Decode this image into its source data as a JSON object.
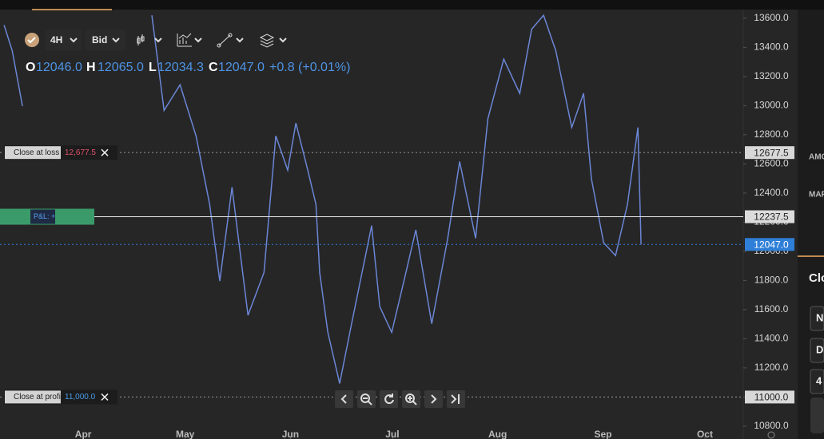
{
  "toolbar": {
    "interval": "4H",
    "price_side": "Bid"
  },
  "ohlc": {
    "o_label": "O",
    "o": "12046.0",
    "h_label": "H",
    "h": "12065.0",
    "l_label": "L",
    "l": "12034.3",
    "c_label": "C",
    "c": "12047.0",
    "change": "+0.8 (+0.01%)"
  },
  "side_panel": {
    "texts": [
      "AMO",
      "MAR",
      "Clo",
      "N",
      "Di",
      "4"
    ]
  },
  "chart_data": {
    "type": "line",
    "x": [
      -23.3,
      -20.9,
      -17.9,
      5,
      20.2,
      23.8,
      28.5,
      33.2,
      37.2,
      40.2,
      43.8,
      48.5,
      53.2,
      56.7,
      60.2,
      62.6,
      66.1,
      68.5,
      69.6,
      72,
      75.5,
      79,
      84.9,
      87.3,
      90.8,
      94.4,
      97.9,
      102.6,
      107.3,
      110.8,
      115.5,
      119.1,
      123.8,
      128.5,
      132,
      135.5,
      139.1,
      143.8,
      147.3,
      149.6,
      153.2,
      156.7,
      160.2,
      163.3,
      164.2
    ],
    "series": [
      {
        "color": "#6b86d6",
        "values": [
          13553,
          13377,
          12997,
          null,
          13620,
          12967,
          13143,
          12792,
          12323,
          11796,
          12440,
          11561,
          11854,
          12792,
          12557,
          12880,
          12557,
          12323,
          11854,
          11444,
          11093,
          11503,
          12177,
          11620,
          11444,
          11796,
          12147,
          11503,
          12089,
          12616,
          12089,
          12909,
          13319,
          13084,
          13524,
          13620,
          13377,
          12850,
          13084,
          12498,
          12059,
          11971,
          12323,
          12850,
          12047
        ]
      }
    ],
    "xlim": [
      -24.5,
      194.3
    ],
    "xticks": [
      {
        "value": 0,
        "label": "Apr"
      },
      {
        "value": 30,
        "label": "May"
      },
      {
        "value": 61,
        "label": "Jun"
      },
      {
        "value": 91,
        "label": "Jul"
      },
      {
        "value": 122,
        "label": "Aug"
      },
      {
        "value": 153,
        "label": "Sep"
      },
      {
        "value": 183,
        "label": "Oct"
      }
    ],
    "ylim": [
      10712,
      13659
    ],
    "yticks": [
      {
        "value": 13600,
        "label": "13600.0"
      },
      {
        "value": 13400,
        "label": "13400.0"
      },
      {
        "value": 13200,
        "label": "13200.0"
      },
      {
        "value": 13000,
        "label": "13000.0"
      },
      {
        "value": 12800,
        "label": "12800.0"
      },
      {
        "value": 12600,
        "label": "12600.0"
      },
      {
        "value": 12400,
        "label": "12400.0"
      },
      {
        "value": 12200,
        "label": "12200.0"
      },
      {
        "value": 12000,
        "label": "12000.0"
      },
      {
        "value": 11800,
        "label": "11800.0"
      },
      {
        "value": 11600,
        "label": "11600.0"
      },
      {
        "value": 11400,
        "label": "11400.0"
      },
      {
        "value": 11200,
        "label": "11200.0"
      },
      {
        "value": 11000,
        "label": "11000.0"
      },
      {
        "value": 10800,
        "label": "10800.0"
      }
    ],
    "grid": false,
    "levels": [
      {
        "value": 12677.5,
        "label": "12677.5",
        "tag": "Close at loss",
        "tag_value": "12,677.5",
        "color": "#9a9a9a",
        "tag_color": "#e0506a"
      },
      {
        "value": 12237.5,
        "label": "12237.5",
        "tag": "P&L: +",
        "color": "#e8e8e8"
      },
      {
        "value": 12047.0,
        "label": "12047.0",
        "color": "#2f7fd8"
      },
      {
        "value": 11000.0,
        "label": "11000.0",
        "tag": "Close at profit",
        "tag_value": "11,000.0",
        "color": "#9a9a9a",
        "tag_color": "#4a9ae8"
      }
    ]
  }
}
